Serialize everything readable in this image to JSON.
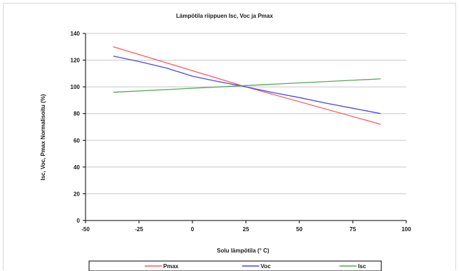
{
  "chart_data": {
    "type": "line",
    "title": "Lämpötila riippuen Isc, Voc ja Pmax",
    "xlabel": "Solu lämpötila (° C)",
    "ylabel": "Isc, Voc, Pmax Normalisoitu (%)",
    "xlim": [
      -50,
      100
    ],
    "ylim": [
      0,
      140
    ],
    "x_ticks": [
      -50,
      -25,
      0,
      25,
      50,
      75,
      100
    ],
    "y_ticks": [
      0,
      20,
      40,
      60,
      80,
      100,
      120,
      140
    ],
    "grid": "horizontal",
    "legend_position": "bottom",
    "series": [
      {
        "name": "Pmax",
        "color": "#ff5a5a",
        "points": [
          [
            -37,
            130
          ],
          [
            25,
            100
          ],
          [
            88,
            72
          ]
        ]
      },
      {
        "name": "Voc",
        "color": "#4a4ae8",
        "points": [
          [
            -37,
            123
          ],
          [
            -25,
            119
          ],
          [
            -12,
            114
          ],
          [
            0,
            108
          ],
          [
            12,
            104
          ],
          [
            25,
            100
          ],
          [
            37,
            96
          ],
          [
            50,
            92
          ],
          [
            62,
            88
          ],
          [
            75,
            84
          ],
          [
            88,
            80
          ]
        ]
      },
      {
        "name": "Isc",
        "color": "#5aa55a",
        "points": [
          [
            -37,
            96
          ],
          [
            25,
            101
          ],
          [
            88,
            106
          ]
        ]
      }
    ]
  }
}
